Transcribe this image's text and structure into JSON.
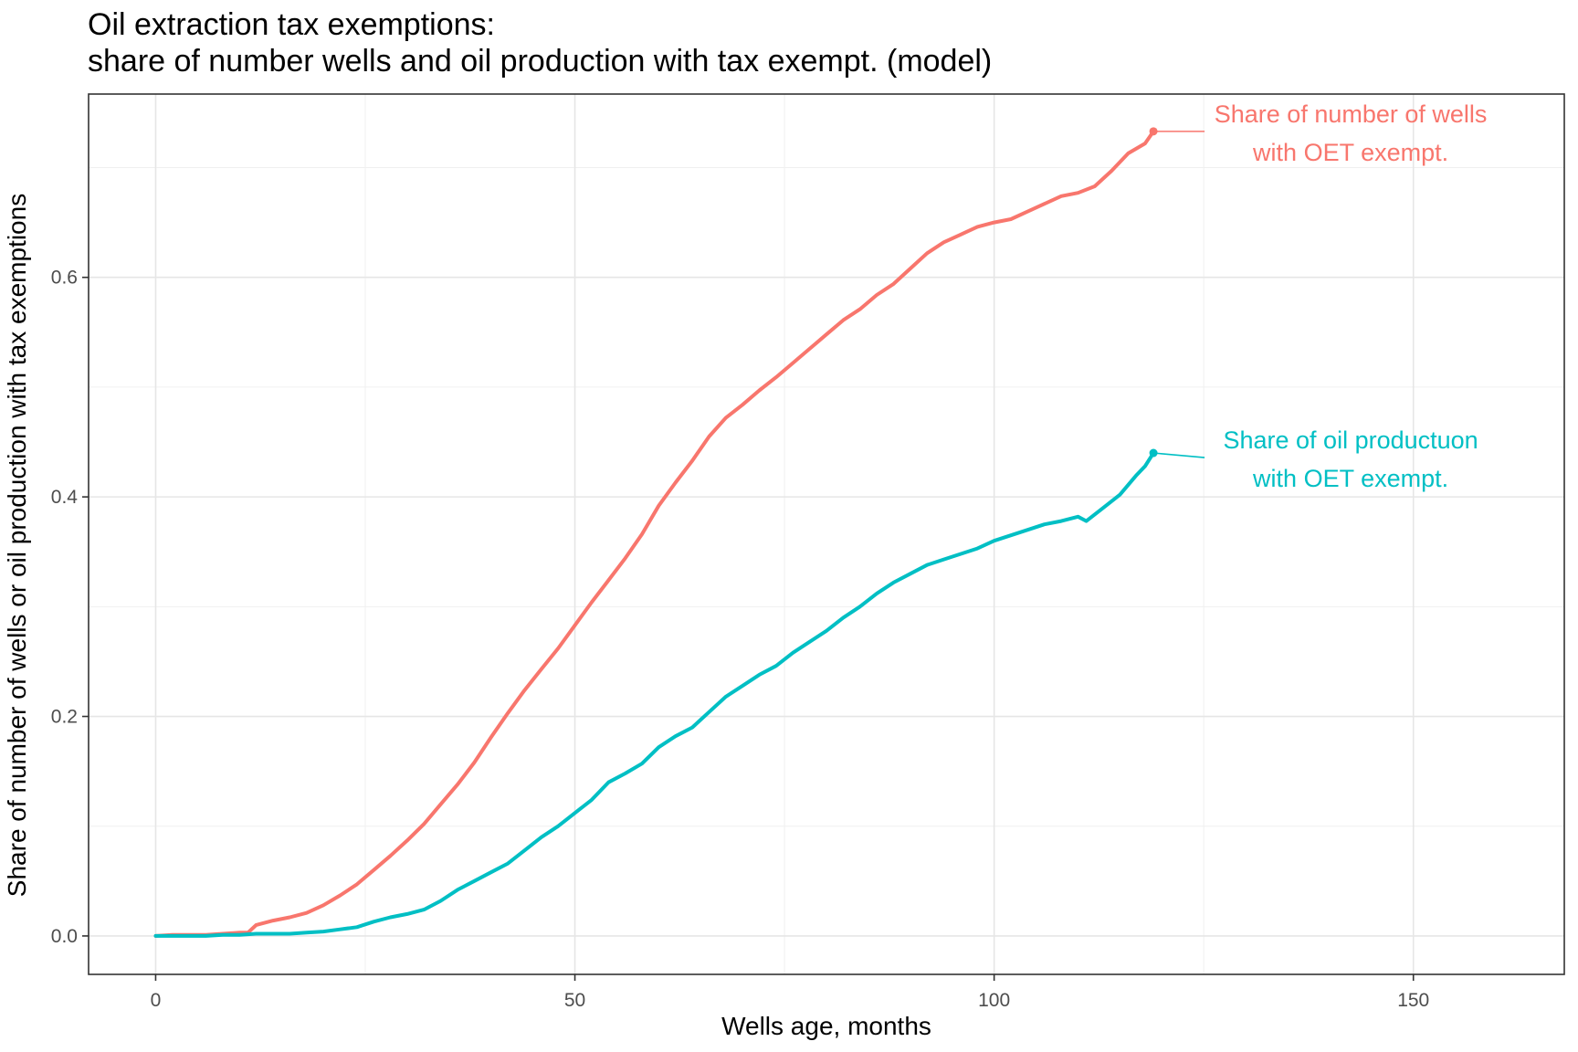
{
  "chart_data": {
    "type": "line",
    "title": "Oil extraction tax exemptions:",
    "subtitle": "share of number wells and oil production with tax exempt. (model)",
    "xlabel": "Wells age, months",
    "ylabel": "Share of number of wells or oil production with tax exemptions",
    "xlim": [
      -8,
      168
    ],
    "ylim": [
      -0.035,
      0.767
    ],
    "x_ticks": [
      0,
      50,
      100,
      150
    ],
    "x_tick_labels": [
      "0",
      "50",
      "100",
      "150"
    ],
    "y_ticks": [
      0.0,
      0.2,
      0.4,
      0.6
    ],
    "y_tick_labels": [
      "0.0",
      "0.2",
      "0.4",
      "0.6"
    ],
    "grid": true,
    "legend": "none (direct labels at line ends)",
    "series": [
      {
        "color": "#F8766D",
        "end_label": "Share of number of wells\nwith OET exempt.",
        "x": [
          0,
          2,
          4,
          6,
          8,
          10,
          11,
          12,
          14,
          16,
          18,
          20,
          22,
          24,
          26,
          28,
          30,
          32,
          34,
          36,
          38,
          40,
          42,
          44,
          46,
          48,
          50,
          52,
          54,
          56,
          58,
          60,
          62,
          64,
          66,
          68,
          70,
          72,
          74,
          76,
          78,
          80,
          82,
          84,
          86,
          88,
          90,
          92,
          94,
          96,
          98,
          100,
          102,
          104,
          106,
          108,
          110,
          112,
          114,
          116,
          118,
          119
        ],
        "y": [
          0.0,
          0.001,
          0.001,
          0.001,
          0.002,
          0.003,
          0.003,
          0.01,
          0.014,
          0.017,
          0.021,
          0.028,
          0.037,
          0.047,
          0.06,
          0.073,
          0.087,
          0.102,
          0.12,
          0.138,
          0.158,
          0.181,
          0.203,
          0.224,
          0.243,
          0.262,
          0.283,
          0.304,
          0.324,
          0.344,
          0.366,
          0.392,
          0.413,
          0.433,
          0.455,
          0.472,
          0.484,
          0.497,
          0.509,
          0.522,
          0.535,
          0.548,
          0.561,
          0.571,
          0.584,
          0.594,
          0.608,
          0.622,
          0.632,
          0.639,
          0.646,
          0.65,
          0.653,
          0.66,
          0.667,
          0.674,
          0.677,
          0.683,
          0.697,
          0.713,
          0.722,
          0.733
        ]
      },
      {
        "color": "#00BFC4",
        "end_label": "Share of oil productuon\nwith OET exempt.",
        "x": [
          0,
          2,
          4,
          6,
          8,
          10,
          12,
          14,
          16,
          18,
          20,
          22,
          24,
          26,
          28,
          30,
          32,
          34,
          36,
          38,
          40,
          42,
          44,
          46,
          48,
          50,
          52,
          54,
          56,
          58,
          60,
          62,
          64,
          66,
          68,
          70,
          72,
          74,
          76,
          78,
          80,
          82,
          84,
          86,
          88,
          90,
          92,
          94,
          96,
          98,
          100,
          102,
          104,
          106,
          108,
          110,
          111,
          113,
          115,
          117,
          118,
          119
        ],
        "y": [
          0.0,
          0.0,
          0.0,
          0.0,
          0.001,
          0.001,
          0.002,
          0.002,
          0.002,
          0.003,
          0.004,
          0.006,
          0.008,
          0.013,
          0.017,
          0.02,
          0.024,
          0.032,
          0.042,
          0.05,
          0.058,
          0.066,
          0.078,
          0.09,
          0.1,
          0.112,
          0.124,
          0.14,
          0.148,
          0.157,
          0.172,
          0.182,
          0.19,
          0.204,
          0.218,
          0.228,
          0.238,
          0.246,
          0.258,
          0.268,
          0.278,
          0.29,
          0.3,
          0.312,
          0.322,
          0.33,
          0.338,
          0.343,
          0.348,
          0.353,
          0.36,
          0.365,
          0.37,
          0.375,
          0.378,
          0.382,
          0.378,
          0.39,
          0.402,
          0.42,
          0.428,
          0.44
        ]
      }
    ]
  }
}
